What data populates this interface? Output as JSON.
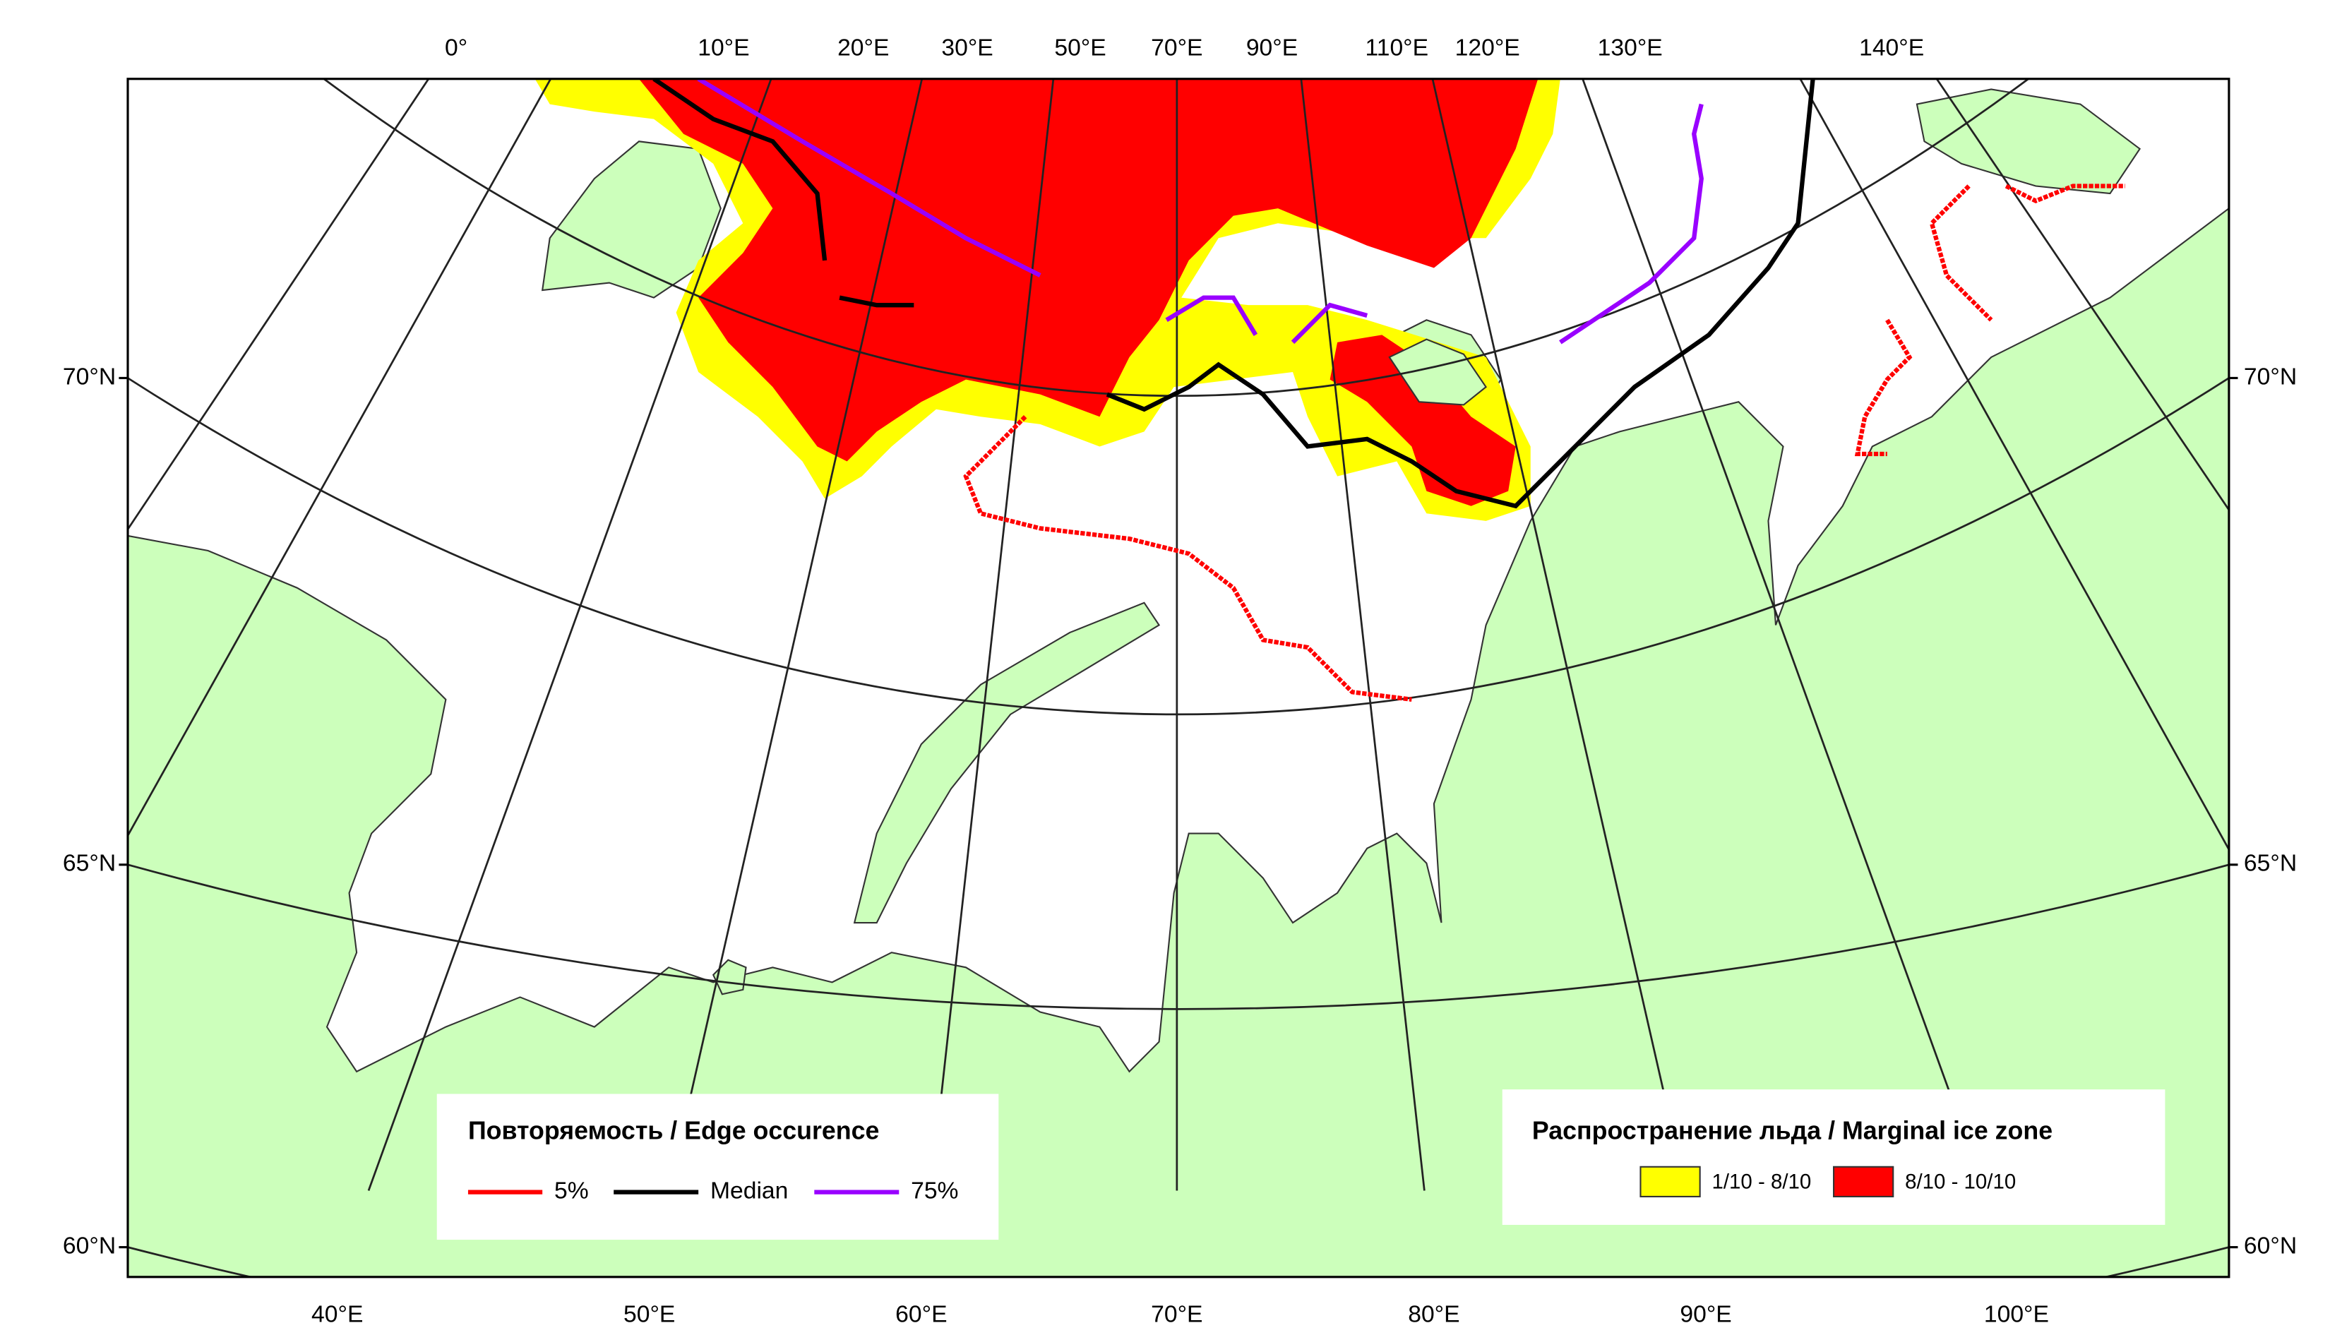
{
  "map": {
    "top_labels": [
      "0°",
      "10°E",
      "20°E",
      "30°E",
      "50°E",
      "70°E",
      "90°E",
      "110°E",
      "120°E",
      "130°E",
      "140°E"
    ],
    "bottom_labels": [
      "40°E",
      "50°E",
      "60°E",
      "70°E",
      "80°E",
      "90°E",
      "100°E"
    ],
    "left_labels": [
      "70°N",
      "65°N",
      "60°N"
    ],
    "right_labels": [
      "70°N",
      "65°N",
      "60°N"
    ]
  },
  "legend_edge": {
    "title": "Повторяемость / Edge occurence",
    "items": [
      {
        "label": "5%",
        "color": "#ff0000"
      },
      {
        "label": "Median",
        "color": "#000000"
      },
      {
        "label": "75%",
        "color": "#9900ff"
      }
    ]
  },
  "legend_ice": {
    "title": "Распространение льда / Marginal ice zone",
    "items": [
      {
        "label": "1/10 - 8/10",
        "color": "#ffff00"
      },
      {
        "label": "8/10 - 10/10",
        "color": "#ff0000"
      }
    ]
  }
}
